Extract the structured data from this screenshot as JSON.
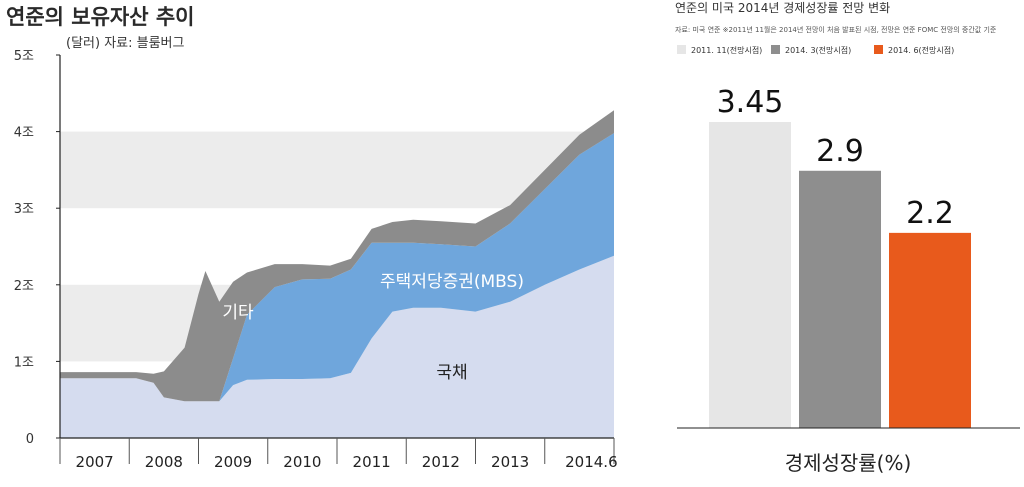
{
  "charts_meta": {
    "left_title": "연준의 보유자산 추이",
    "left_subtitle": "(달러)   자료: 블룸버그",
    "right_title": "연준의 미국 2014년 경제성장률 전망 변화",
    "right_note": "자료: 미국 연준    ※2011년 11월은 2014년 전망이 처음 발표된 시점, 전망은 연준 FOMC 전망의 중간값 기준",
    "right_xlabel": "경제성장률(%)"
  },
  "chart_data": [
    {
      "type": "area",
      "title": "연준의 보유자산 추이",
      "ylabel": "(달러)",
      "source": "자료: 블룸버그",
      "ylim": [
        0,
        5
      ],
      "yticks": [
        0,
        1,
        2,
        3,
        4,
        5
      ],
      "ytick_labels": [
        "0",
        "1조",
        "2조",
        "3조",
        "4조",
        "5조"
      ],
      "xlim": [
        2006.5,
        2014.5
      ],
      "xtick_labels": [
        "2007",
        "2008",
        "2009",
        "2010",
        "2011",
        "2012",
        "2013",
        "2014.6"
      ],
      "x": [
        2006.5,
        2007.0,
        2007.6,
        2007.85,
        2008.0,
        2008.3,
        2008.5,
        2008.6,
        2008.8,
        2009.0,
        2009.2,
        2009.6,
        2010.0,
        2010.4,
        2010.7,
        2011.0,
        2011.3,
        2011.6,
        2012.0,
        2012.5,
        2013.0,
        2013.5,
        2014.0,
        2014.5
      ],
      "series": [
        {
          "name": "국채",
          "color": "#d5dcef",
          "values": [
            0.78,
            0.78,
            0.78,
            0.72,
            0.53,
            0.48,
            0.48,
            0.48,
            0.48,
            0.69,
            0.76,
            0.77,
            0.77,
            0.78,
            0.85,
            1.3,
            1.65,
            1.7,
            1.7,
            1.65,
            1.78,
            2.0,
            2.2,
            2.38
          ]
        },
        {
          "name": "주택저당증권(MBS)",
          "color": "#6fa6dc",
          "values": [
            0,
            0,
            0,
            0,
            0,
            0,
            0,
            0,
            0,
            0.35,
            0.85,
            1.2,
            1.3,
            1.3,
            1.35,
            1.25,
            0.9,
            0.85,
            0.83,
            0.85,
            1.02,
            1.25,
            1.5,
            1.6
          ]
        },
        {
          "name": "기타",
          "color": "#8c8c8c",
          "values": [
            0.08,
            0.08,
            0.08,
            0.12,
            0.34,
            0.7,
            1.4,
            1.7,
            1.3,
            1.0,
            0.55,
            0.3,
            0.2,
            0.17,
            0.14,
            0.18,
            0.27,
            0.3,
            0.3,
            0.3,
            0.24,
            0.25,
            0.26,
            0.3
          ]
        }
      ]
    },
    {
      "type": "bar",
      "title": "연준의 미국 2014년 경제성장률 전망 변화",
      "xlabel": "경제성장률(%)",
      "categories": [
        "2011. 11(전망시점)",
        "2014. 3(전망시점)",
        "2014. 6(전망시점)"
      ],
      "values": [
        3.45,
        2.9,
        2.2
      ],
      "value_labels": [
        "3.45",
        "2.9",
        "2.2"
      ],
      "colors": [
        "#e6e6e6",
        "#8e8e8e",
        "#e85a1c"
      ],
      "ylim": [
        0,
        3.45
      ]
    }
  ]
}
